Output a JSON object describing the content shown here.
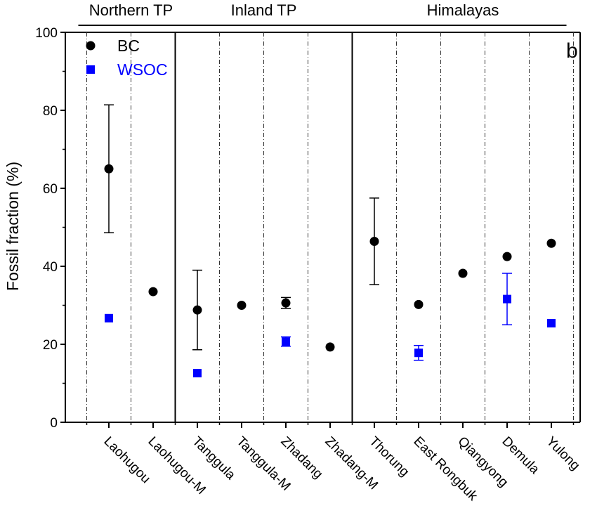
{
  "chart_data": {
    "type": "scatter",
    "panel_label": "b",
    "ylabel": "Fossil fraction (%)",
    "xlabel": "",
    "ylim": [
      0,
      100
    ],
    "yticks": [
      0,
      20,
      40,
      60,
      80,
      100
    ],
    "categories": [
      "Laohugou",
      "Laohugou-M",
      "Tanggula",
      "Tanggula-M",
      "Zhadang",
      "Zhadang-M",
      "Thorung",
      "East Rongbuk",
      "Qiangyong",
      "Demula",
      "Yulong"
    ],
    "regions": [
      {
        "name": "Northern TP",
        "from": 0,
        "to": 1
      },
      {
        "name": "Inland TP",
        "from": 2,
        "to": 5
      },
      {
        "name": "Himalayas",
        "from": 6,
        "to": 10
      }
    ],
    "legend": {
      "position": "top-left"
    },
    "series": [
      {
        "name": "BC",
        "color": "#000000",
        "marker": "circle",
        "values": [
          65,
          33.5,
          28.8,
          30,
          30.6,
          19.3,
          46.4,
          30.2,
          38.2,
          42.5,
          45.9
        ],
        "errors": [
          16.4,
          null,
          10.2,
          null,
          1.4,
          null,
          11.1,
          null,
          null,
          null,
          null
        ]
      },
      {
        "name": "WSOC",
        "color": "#0000ff",
        "marker": "square",
        "values": [
          26.7,
          null,
          12.6,
          null,
          20.7,
          null,
          null,
          17.8,
          null,
          31.6,
          25.4
        ],
        "errors": [
          null,
          null,
          null,
          null,
          1.2,
          null,
          null,
          1.9,
          null,
          6.6,
          null
        ]
      }
    ]
  }
}
